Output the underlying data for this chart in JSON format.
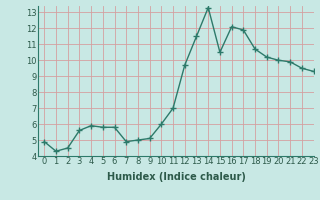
{
  "x": [
    0,
    1,
    2,
    3,
    4,
    5,
    6,
    7,
    8,
    9,
    10,
    11,
    12,
    13,
    14,
    15,
    16,
    17,
    18,
    19,
    20,
    21,
    22,
    23
  ],
  "y": [
    4.9,
    4.3,
    4.5,
    5.6,
    5.9,
    5.8,
    5.8,
    4.9,
    5.0,
    5.1,
    6.0,
    7.0,
    9.7,
    11.5,
    13.3,
    10.5,
    12.1,
    11.9,
    10.7,
    10.2,
    10.0,
    9.9,
    9.5,
    9.3
  ],
  "line_color": "#2d7a6a",
  "bg_color": "#c8e8e4",
  "grid_color": "#d4a0a0",
  "xlabel": "Humidex (Indice chaleur)",
  "xlim": [
    -0.5,
    23
  ],
  "ylim": [
    4,
    13.4
  ],
  "yticks": [
    4,
    5,
    6,
    7,
    8,
    9,
    10,
    11,
    12,
    13
  ],
  "xticks": [
    0,
    1,
    2,
    3,
    4,
    5,
    6,
    7,
    8,
    9,
    10,
    11,
    12,
    13,
    14,
    15,
    16,
    17,
    18,
    19,
    20,
    21,
    22,
    23
  ],
  "xtick_labels": [
    "0",
    "1",
    "2",
    "3",
    "4",
    "5",
    "6",
    "7",
    "8",
    "9",
    "10",
    "11",
    "12",
    "13",
    "14",
    "15",
    "16",
    "17",
    "18",
    "19",
    "20",
    "21",
    "22",
    "23"
  ],
  "marker": "+",
  "markersize": 4,
  "linewidth": 1.0,
  "xlabel_fontsize": 7.0,
  "tick_fontsize": 6.0,
  "spine_color": "#2d7a6a"
}
